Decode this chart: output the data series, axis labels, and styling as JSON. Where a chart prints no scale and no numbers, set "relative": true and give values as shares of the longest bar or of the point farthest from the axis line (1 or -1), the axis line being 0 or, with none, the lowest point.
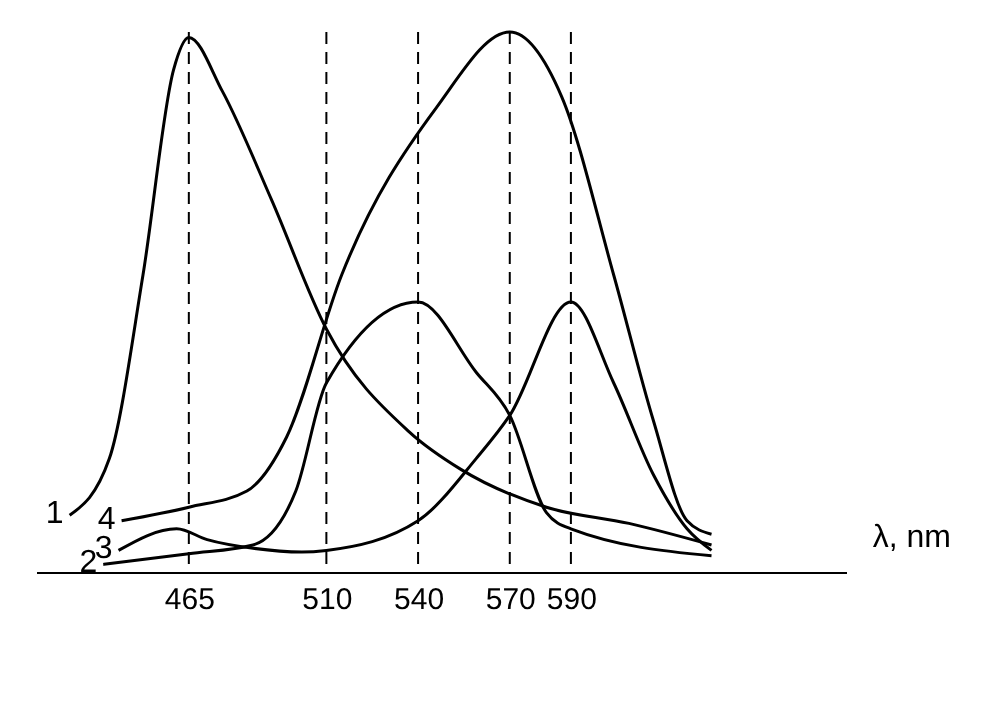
{
  "chart_data": {
    "type": "line",
    "relative": true,
    "xlabel": "λ, nm",
    "xlim": [
      415,
      680
    ],
    "xticks": [
      465,
      510,
      540,
      570,
      590
    ],
    "grid": false,
    "legend": false,
    "marker": "none",
    "line_style": "solid",
    "ref_lines": [
      {
        "axis": "x",
        "value": 465,
        "line_style": "dashed"
      },
      {
        "axis": "x",
        "value": 510,
        "line_style": "dashed"
      },
      {
        "axis": "x",
        "value": 540,
        "line_style": "dashed"
      },
      {
        "axis": "x",
        "value": 570,
        "line_style": "dashed"
      },
      {
        "axis": "x",
        "value": 590,
        "line_style": "dashed"
      }
    ],
    "series": [
      {
        "name": "1",
        "color": "#000000",
        "x": [
          426,
          439,
          450,
          460,
          465,
          476,
          492,
          510,
          537,
          554,
          582,
          609,
          636
        ],
        "values": [
          0.105,
          0.21,
          0.55,
          0.93,
          0.99,
          0.89,
          0.69,
          0.45,
          0.26,
          0.19,
          0.12,
          0.09,
          0.05
        ]
      },
      {
        "name": "2",
        "color": "#000000",
        "x": [
          437,
          465,
          486,
          500,
          510,
          540,
          559,
          570,
          582,
          590,
          636
        ],
        "values": [
          0.014,
          0.034,
          0.05,
          0.15,
          0.35,
          0.5,
          0.37,
          0.29,
          0.11,
          0.08,
          0.03
        ]
      },
      {
        "name": "3",
        "color": "#000000",
        "x": [
          442,
          461,
          471,
          486,
          502,
          510,
          540,
          559,
          570,
          590,
          604,
          617,
          628,
          636
        ],
        "values": [
          0.04,
          0.08,
          0.06,
          0.044,
          0.037,
          0.04,
          0.095,
          0.21,
          0.29,
          0.5,
          0.35,
          0.18,
          0.08,
          0.04
        ]
      },
      {
        "name": "4",
        "color": "#000000",
        "x": [
          443,
          465,
          484,
          497,
          515,
          546,
          570,
          587,
          604,
          617,
          628,
          636
        ],
        "values": [
          0.095,
          0.12,
          0.15,
          0.25,
          0.55,
          0.86,
          1,
          0.88,
          0.55,
          0.28,
          0.095,
          0.07
        ]
      }
    ]
  }
}
